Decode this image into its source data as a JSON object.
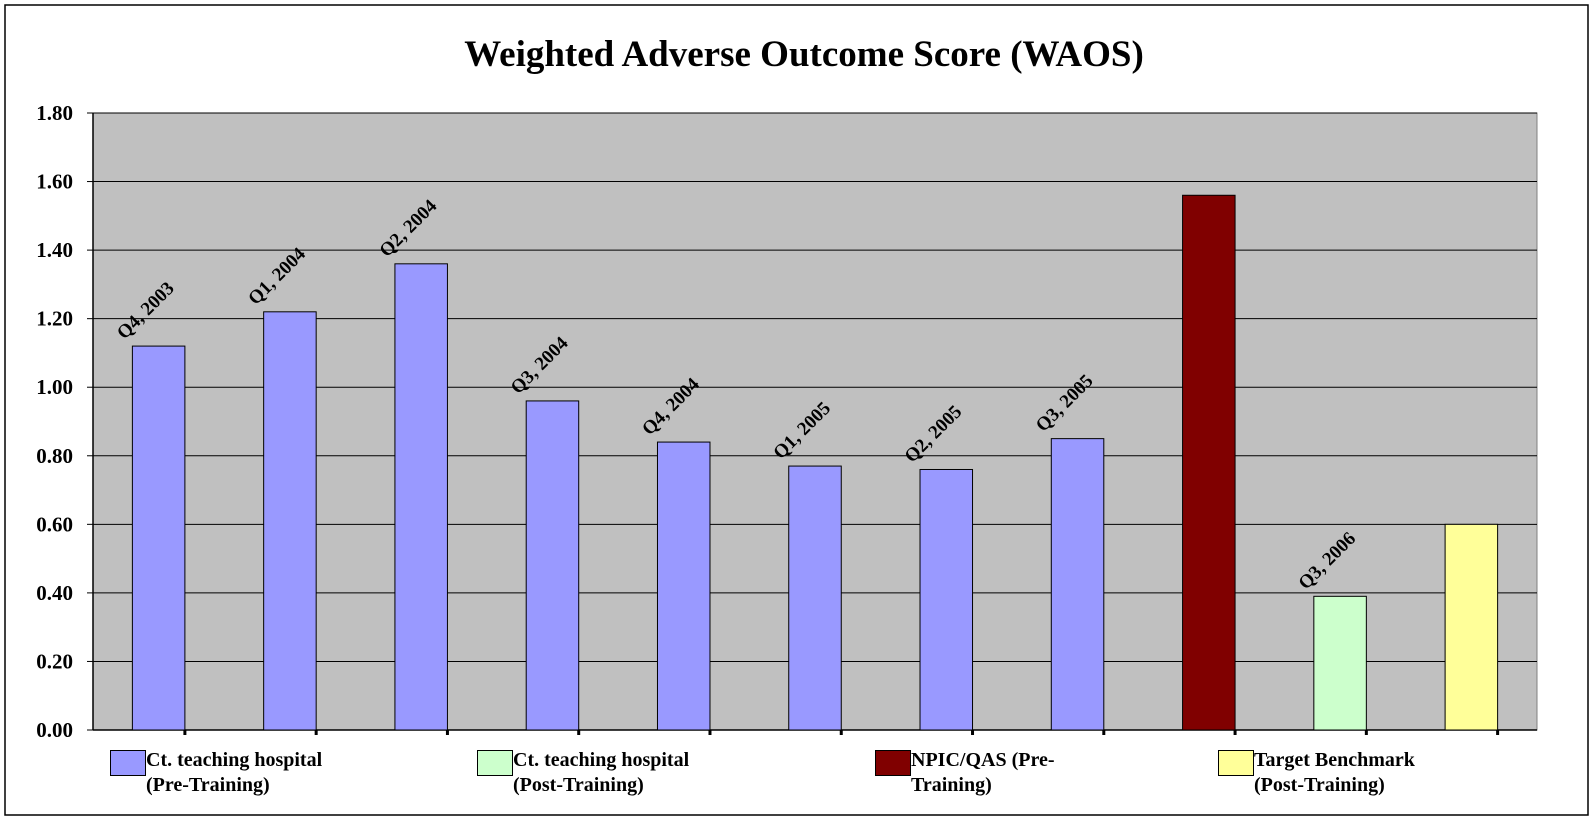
{
  "chart_data": {
    "type": "bar",
    "title": "Weighted Adverse Outcome Score (WAOS)",
    "categories": [
      "Q4, 2003",
      "Q1, 2004",
      "Q2, 2004",
      "Q3, 2004",
      "Q4, 2004",
      "Q1, 2005",
      "Q2, 2005",
      "Q3, 2005",
      null,
      "Q3, 2006",
      null
    ],
    "series": [
      {
        "name": "Ct. teaching hospital (Pre-Training)",
        "color": "#9999ff",
        "values": [
          1.12,
          1.22,
          1.36,
          0.96,
          0.84,
          0.77,
          0.76,
          0.85,
          null,
          null,
          null
        ]
      },
      {
        "name": "Ct. teaching hospital (Post-Training)",
        "color": "#ccffcc",
        "values": [
          null,
          null,
          null,
          null,
          null,
          null,
          null,
          null,
          null,
          0.39,
          null
        ]
      },
      {
        "name": "NPIC/QAS (Pre-Training)",
        "color": "#800000",
        "values": [
          null,
          null,
          null,
          null,
          null,
          null,
          null,
          null,
          1.56,
          null,
          null
        ]
      },
      {
        "name": "Target Benchmark (Post-Training)",
        "color": "#ffff99",
        "values": [
          null,
          null,
          null,
          null,
          null,
          null,
          null,
          null,
          null,
          null,
          0.6
        ]
      }
    ],
    "ylim": [
      0,
      1.8
    ],
    "yticks": [
      {
        "value": 0,
        "label": "0.00"
      },
      {
        "value": 0.2,
        "label": "0.20"
      },
      {
        "value": 0.4,
        "label": "0.40"
      },
      {
        "value": 0.6,
        "label": "0.60"
      },
      {
        "value": 0.8,
        "label": "0.80"
      },
      {
        "value": 1.0,
        "label": "1.00"
      },
      {
        "value": 1.2,
        "label": "1.20"
      },
      {
        "value": 1.4,
        "label": "1.40"
      },
      {
        "value": 1.6,
        "label": "1.60"
      },
      {
        "value": 1.8,
        "label": "1.80"
      }
    ],
    "grid": true
  }
}
